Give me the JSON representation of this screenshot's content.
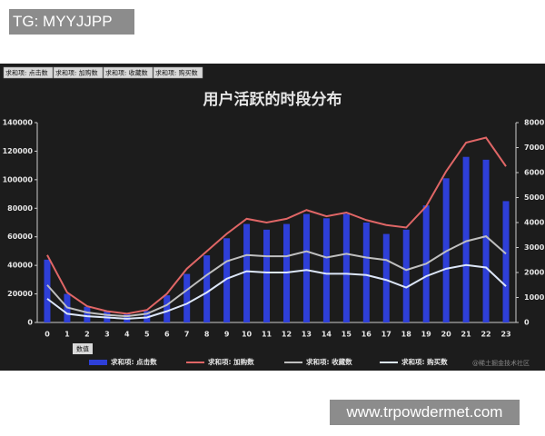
{
  "header_tag": "TG: MYYJJPP",
  "footer_url": "www.trpowdermet.com",
  "chart_data": {
    "type": "bar",
    "title": "用户活跃的时段分布",
    "field_buttons": [
      "求和项: 点击数",
      "求和项: 加购数",
      "求和项: 收藏数",
      "求和项: 购买数"
    ],
    "x_label": "数值",
    "watermark": "@稀土掘金技术社区",
    "categories": [
      "0",
      "1",
      "2",
      "3",
      "4",
      "5",
      "6",
      "7",
      "8",
      "9",
      "10",
      "11",
      "12",
      "13",
      "14",
      "15",
      "16",
      "17",
      "18",
      "19",
      "20",
      "21",
      "22",
      "23"
    ],
    "series": [
      {
        "name": "求和项: 点击数",
        "type": "bar",
        "color": "#2e3fd8",
        "values": [
          44000,
          20000,
          11000,
          8000,
          6000,
          8000,
          19000,
          34000,
          47000,
          59000,
          69000,
          65000,
          69000,
          76000,
          73000,
          76000,
          70000,
          62000,
          65000,
          82000,
          101000,
          116000,
          114000,
          85000
        ]
      },
      {
        "name": "求和项: 加购数",
        "type": "line",
        "axis": "y2",
        "color": "#e06666",
        "values": [
          2700,
          1200,
          650,
          450,
          350,
          500,
          1150,
          2150,
          2850,
          3550,
          4150,
          4000,
          4150,
          4500,
          4250,
          4400,
          4100,
          3900,
          3800,
          4650,
          6050,
          7200,
          7400,
          6250
        ]
      },
      {
        "name": "求和项: 收藏数",
        "type": "line",
        "axis": "y2",
        "color": "#bfbfbf",
        "values": [
          1500,
          600,
          400,
          300,
          250,
          350,
          700,
          1300,
          1900,
          2450,
          2700,
          2650,
          2650,
          2850,
          2600,
          2750,
          2600,
          2500,
          2100,
          2350,
          2850,
          3250,
          3450,
          2750
        ]
      },
      {
        "name": "求和项: 购买数",
        "type": "line",
        "axis": "y2",
        "color": "#dce6f8",
        "values": [
          950,
          350,
          250,
          200,
          150,
          200,
          450,
          750,
          1200,
          1750,
          2050,
          2000,
          2000,
          2100,
          1950,
          1950,
          1900,
          1700,
          1400,
          1850,
          2150,
          2300,
          2200,
          1450
        ]
      }
    ],
    "ylim": [
      0,
      140000
    ],
    "yticks": [
      0,
      20000,
      40000,
      60000,
      80000,
      100000,
      120000,
      140000
    ],
    "y2lim": [
      0,
      8000
    ],
    "y2ticks": [
      0,
      1000,
      2000,
      3000,
      4000,
      5000,
      6000,
      7000,
      8000
    ]
  }
}
